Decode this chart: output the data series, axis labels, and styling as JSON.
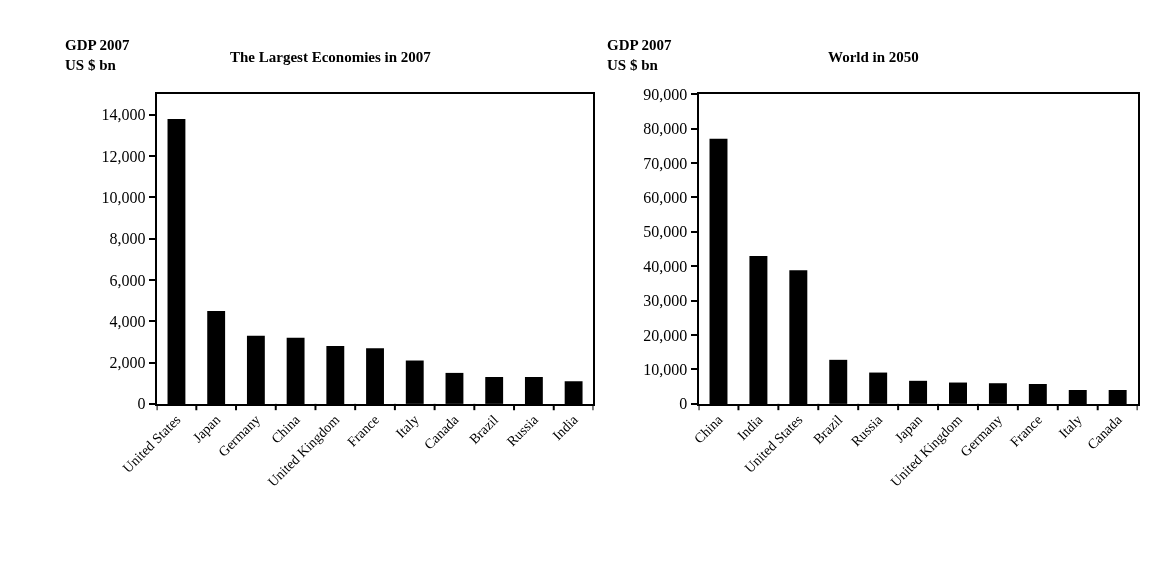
{
  "chart_data": [
    {
      "type": "bar",
      "title": "The Largest Economies in 2007",
      "ylabel": "GDP 2007\nUS $ bn",
      "categories": [
        "United States",
        "Japan",
        "Germany",
        "China",
        "United Kingdom",
        "France",
        "Italy",
        "Canada",
        "Brazil",
        "Russia",
        "India"
      ],
      "values": [
        13800,
        4500,
        3300,
        3200,
        2800,
        2700,
        2100,
        1500,
        1300,
        1300,
        1100
      ],
      "color": "#000000",
      "ylim": [
        0,
        15000
      ],
      "yticks": [
        0,
        {
          "value": 2000,
          "label": "2,000"
        },
        {
          "value": 4000,
          "label": "4,000"
        },
        {
          "value": 6000,
          "label": "6,000"
        },
        {
          "value": 8000,
          "label": "8,000"
        },
        {
          "value": 10000,
          "label": "10,000"
        },
        {
          "value": 12000,
          "label": "12,000"
        },
        {
          "value": 14000,
          "label": "14,000"
        }
      ]
    },
    {
      "type": "bar",
      "title": "World in 2050",
      "ylabel": "GDP 2007\nUS $ bn",
      "categories": [
        "China",
        "India",
        "United States",
        "Brazil",
        "Russia",
        "Japan",
        "United Kingdom",
        "Germany",
        "France",
        "Italy",
        "Canada"
      ],
      "values": [
        77000,
        43000,
        38800,
        12800,
        9100,
        6700,
        6200,
        6000,
        5800,
        4000,
        4000
      ],
      "color": "#000000",
      "ylim": [
        0,
        90000
      ],
      "yticks": [
        0,
        {
          "value": 10000,
          "label": "10,000"
        },
        {
          "value": 20000,
          "label": "20,000"
        },
        {
          "value": 30000,
          "label": "30,000"
        },
        {
          "value": 40000,
          "label": "40,000"
        },
        {
          "value": 50000,
          "label": "50,000"
        },
        {
          "value": 60000,
          "label": "60,000"
        },
        {
          "value": 70000,
          "label": "70,000"
        },
        {
          "value": 80000,
          "label": "80,000"
        },
        {
          "value": 90000,
          "label": "90,000"
        }
      ]
    }
  ]
}
